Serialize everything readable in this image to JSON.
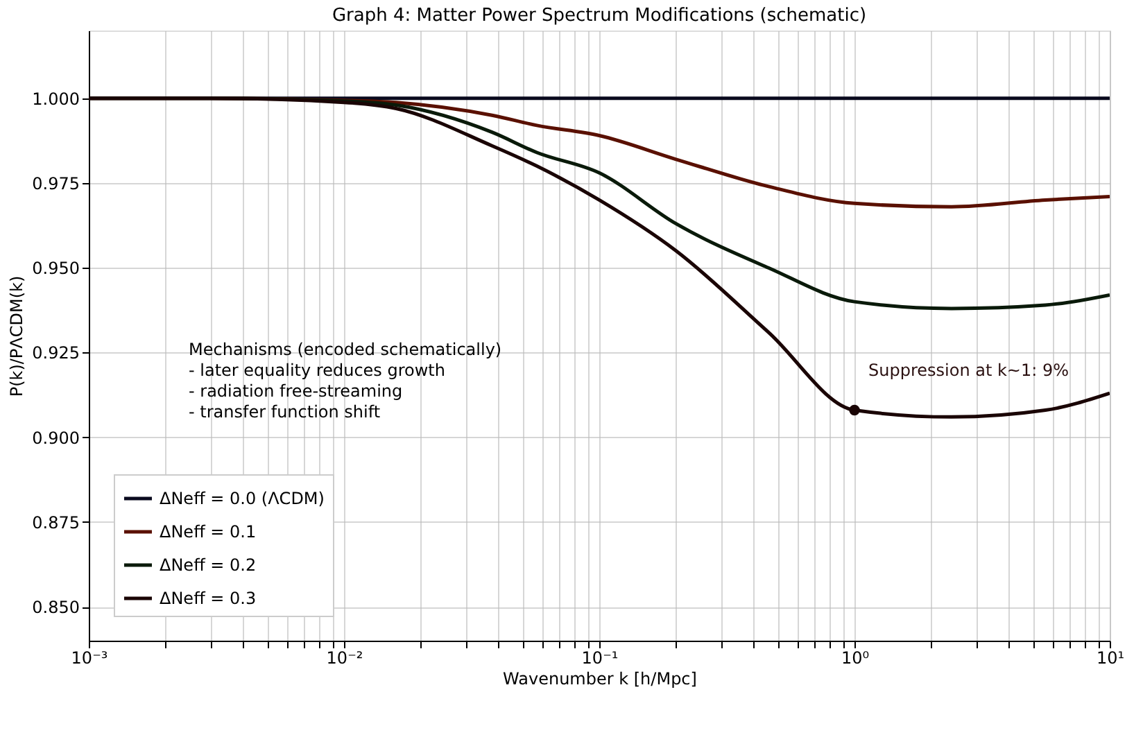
{
  "chart_data": {
    "type": "line",
    "title": "Graph 4: Matter Power Spectrum Modifications (schematic)",
    "xlabel": "Wavenumber  k  [h/Mpc]",
    "ylabel": "P(k)/PΛCDM(k)",
    "log": "x",
    "grid": true,
    "legend": "bottom left",
    "line_style": "solid",
    "xlim": [
      0.001,
      10
    ],
    "ylim": [
      0.84,
      1.02
    ],
    "xticks": [
      {
        "value": 0.001,
        "label": "10⁻³"
      },
      {
        "value": 0.002,
        "label": null
      },
      {
        "value": 0.003,
        "label": null
      },
      {
        "value": 0.004,
        "label": null
      },
      {
        "value": 0.005,
        "label": null
      },
      {
        "value": 0.006,
        "label": null
      },
      {
        "value": 0.007,
        "label": null
      },
      {
        "value": 0.008,
        "label": null
      },
      {
        "value": 0.009,
        "label": null
      },
      {
        "value": 0.01,
        "label": "10⁻²"
      },
      {
        "value": 0.02,
        "label": null
      },
      {
        "value": 0.03,
        "label": null
      },
      {
        "value": 0.04,
        "label": null
      },
      {
        "value": 0.05,
        "label": null
      },
      {
        "value": 0.06,
        "label": null
      },
      {
        "value": 0.07,
        "label": null
      },
      {
        "value": 0.08,
        "label": null
      },
      {
        "value": 0.09,
        "label": null
      },
      {
        "value": 0.1,
        "label": "10⁻¹"
      },
      {
        "value": 0.2,
        "label": null
      },
      {
        "value": 0.3,
        "label": null
      },
      {
        "value": 0.4,
        "label": null
      },
      {
        "value": 0.5,
        "label": null
      },
      {
        "value": 0.6,
        "label": null
      },
      {
        "value": 0.7,
        "label": null
      },
      {
        "value": 0.8,
        "label": null
      },
      {
        "value": 0.9,
        "label": null
      },
      {
        "value": 1,
        "label": "10⁰"
      },
      {
        "value": 2,
        "label": null
      },
      {
        "value": 3,
        "label": null
      },
      {
        "value": 4,
        "label": null
      },
      {
        "value": 5,
        "label": null
      },
      {
        "value": 6,
        "label": null
      },
      {
        "value": 7,
        "label": null
      },
      {
        "value": 8,
        "label": null
      },
      {
        "value": 9,
        "label": null
      },
      {
        "value": 10,
        "label": "10¹"
      }
    ],
    "yticks": [
      {
        "value": 0.85,
        "label": "0.850"
      },
      {
        "value": 0.875,
        "label": "0.875"
      },
      {
        "value": 0.9,
        "label": "0.900"
      },
      {
        "value": 0.925,
        "label": "0.925"
      },
      {
        "value": 0.95,
        "label": "0.950"
      },
      {
        "value": 0.975,
        "label": "0.975"
      },
      {
        "value": 1.0,
        "label": "1.000"
      }
    ],
    "x": [
      0.001,
      0.003,
      0.01,
      0.016,
      0.038,
      0.057,
      0.1,
      0.2,
      0.46,
      1,
      2.4,
      5.6,
      10
    ],
    "series": [
      {
        "name": "ΔNeff = 0.0 (ΛCDM)",
        "color": "#0a0a1e",
        "values": [
          1,
          1,
          1,
          1,
          1,
          1,
          1,
          1,
          1,
          1,
          1,
          1,
          1
        ]
      },
      {
        "name": "ΔNeff = 0.1",
        "color": "#5a1000",
        "values": [
          1,
          1,
          0.9994,
          0.9988,
          0.995,
          0.992,
          0.989,
          0.982,
          0.974,
          0.969,
          0.968,
          0.97,
          0.971
        ]
      },
      {
        "name": "ΔNeff = 0.2",
        "color": "#0a1a0a",
        "values": [
          1,
          1,
          0.9992,
          0.998,
          0.99,
          0.984,
          0.978,
          0.963,
          0.95,
          0.94,
          0.938,
          0.939,
          0.942
        ]
      },
      {
        "name": "ΔNeff = 0.3",
        "color": "#1a0505",
        "values": [
          1,
          1,
          0.9988,
          0.997,
          0.986,
          0.98,
          0.97,
          0.955,
          0.931,
          0.908,
          0.906,
          0.908,
          0.913
        ]
      }
    ],
    "annotations": [
      {
        "text": "Suppression at k~1: 9%",
        "x": 1,
        "y": 0.908
      },
      "Mechanisms (encoded schematically)\n- later equality reduces growth\n- radiation free-streaming\n- transfer function shift"
    ]
  }
}
